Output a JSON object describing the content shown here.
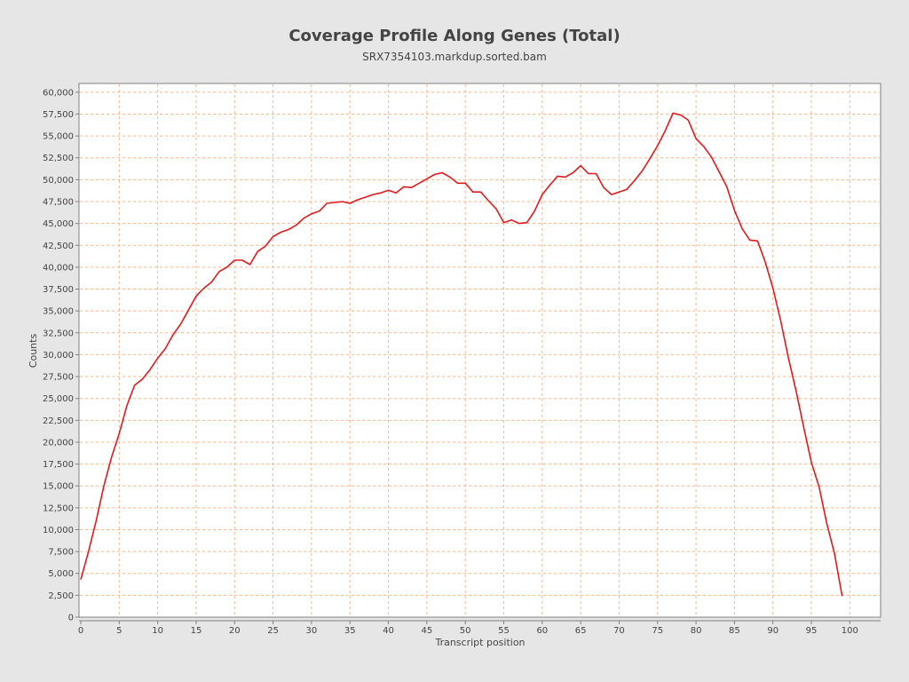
{
  "chart_data": {
    "type": "line",
    "title": "Coverage Profile Along Genes (Total)",
    "subtitle": "SRX7354103.markdup.sorted.bam",
    "xlabel": "Transcript position",
    "ylabel": "Counts",
    "xlim": [
      0,
      104
    ],
    "ylim": [
      0,
      61000
    ],
    "x_ticks": [
      "0",
      "5",
      "10",
      "15",
      "20",
      "25",
      "30",
      "35",
      "40",
      "45",
      "50",
      "55",
      "60",
      "65",
      "70",
      "75",
      "80",
      "85",
      "90",
      "95",
      "100"
    ],
    "y_ticks": [
      "0",
      "2,500",
      "5,000",
      "7,500",
      "10,000",
      "12,500",
      "15,000",
      "17,500",
      "20,000",
      "22,500",
      "25,000",
      "27,500",
      "30,000",
      "32,500",
      "35,000",
      "37,500",
      "40,000",
      "42,500",
      "45,000",
      "47,500",
      "50,000",
      "52,500",
      "55,000",
      "57,500",
      "60,000"
    ],
    "grid": true,
    "series": [
      {
        "color": "#e31a1c",
        "x": [
          0,
          1,
          2,
          3,
          4,
          5,
          6,
          7,
          8,
          9,
          10,
          11,
          12,
          13,
          14,
          15,
          16,
          17,
          18,
          19,
          20,
          21,
          22,
          23,
          24,
          25,
          26,
          27,
          28,
          29,
          30,
          31,
          32,
          33,
          34,
          35,
          36,
          37,
          38,
          39,
          40,
          41,
          42,
          43,
          44,
          45,
          46,
          47,
          48,
          49,
          50,
          51,
          52,
          53,
          54,
          55,
          56,
          57,
          58,
          59,
          60,
          61,
          62,
          63,
          64,
          65,
          66,
          67,
          68,
          69,
          70,
          71,
          72,
          73,
          74,
          75,
          76,
          77,
          78,
          79,
          80,
          81,
          82,
          83,
          84,
          85,
          86,
          87,
          88,
          89,
          90,
          91,
          92,
          93,
          94,
          95,
          96,
          97,
          98,
          99
        ],
        "values": [
          4300,
          7500,
          11000,
          15000,
          18300,
          21000,
          24200,
          26500,
          27200,
          28300,
          29600,
          30700,
          32300,
          33500,
          35100,
          36700,
          37600,
          38300,
          39500,
          40000,
          40800,
          40800,
          40300,
          41800,
          42400,
          43500,
          44000,
          44300,
          44800,
          45600,
          46100,
          46400,
          47300,
          47400,
          47500,
          47300,
          47700,
          48000,
          48300,
          48500,
          48800,
          48500,
          49200,
          49100,
          49600,
          50100,
          50600,
          50800,
          50300,
          49600,
          49600,
          48600,
          48600,
          47600,
          46700,
          45100,
          45400,
          45000,
          45100,
          46400,
          48300,
          49400,
          50400,
          50300,
          50800,
          51600,
          50700,
          50700,
          49100,
          48300,
          48600,
          48900,
          49900,
          51000,
          52400,
          53900,
          55600,
          57600,
          57400,
          56800,
          54700,
          53800,
          52600,
          50900,
          49200,
          46500,
          44400,
          43100,
          43000,
          40600,
          37600,
          33900,
          29700,
          25900,
          21700,
          17700,
          14900,
          10700,
          7300,
          2400
        ]
      }
    ]
  }
}
